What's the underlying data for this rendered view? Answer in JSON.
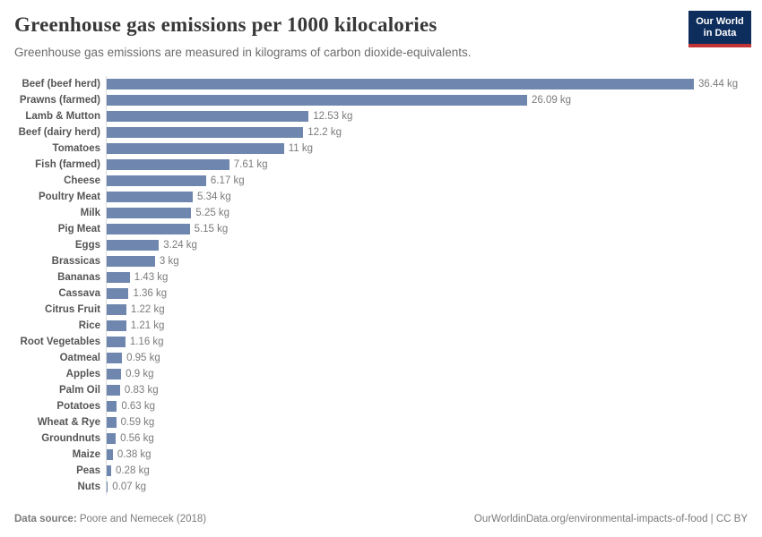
{
  "header": {
    "title": "Greenhouse gas emissions per 1000 kilocalories",
    "subtitle": "Greenhouse gas emissions are measured in kilograms of carbon dioxide-equivalents.",
    "logo": {
      "line1": "Our World",
      "line2": "in Data"
    }
  },
  "footer": {
    "source_label": "Data source:",
    "source_text": " Poore and Nemecek (2018)",
    "link_text": "OurWorldinData.org/environmental-impacts-of-food | CC BY"
  },
  "colors": {
    "bar": "#6f87af",
    "axis_line": "#dcdcdc",
    "logo_bg": "#0d2e5c",
    "logo_accent": "#c23335"
  },
  "chart_data": {
    "type": "bar",
    "orientation": "horizontal",
    "title": "Greenhouse gas emissions per 1000 kilocalories",
    "unit": "kg",
    "xlim": [
      0,
      36.44
    ],
    "grid": false,
    "legend": "none",
    "categories": [
      "Beef (beef herd)",
      "Prawns (farmed)",
      "Lamb & Mutton",
      "Beef (dairy herd)",
      "Tomatoes",
      "Fish (farmed)",
      "Cheese",
      "Poultry Meat",
      "Milk",
      "Pig Meat",
      "Eggs",
      "Brassicas",
      "Bananas",
      "Cassava",
      "Citrus Fruit",
      "Rice",
      "Root Vegetables",
      "Oatmeal",
      "Apples",
      "Palm Oil",
      "Potatoes",
      "Wheat & Rye",
      "Groundnuts",
      "Maize",
      "Peas",
      "Nuts"
    ],
    "values": [
      36.44,
      26.09,
      12.53,
      12.2,
      11,
      7.61,
      6.17,
      5.34,
      5.25,
      5.15,
      3.24,
      3,
      1.43,
      1.36,
      1.22,
      1.21,
      1.16,
      0.95,
      0.9,
      0.83,
      0.63,
      0.59,
      0.56,
      0.38,
      0.28,
      0.07
    ],
    "value_labels": [
      "36.44 kg",
      "26.09 kg",
      "12.53 kg",
      "12.2 kg",
      "11 kg",
      "7.61 kg",
      "6.17 kg",
      "5.34 kg",
      "5.25 kg",
      "5.15 kg",
      "3.24 kg",
      "3 kg",
      "1.43 kg",
      "1.36 kg",
      "1.22 kg",
      "1.21 kg",
      "1.16 kg",
      "0.95 kg",
      "0.9 kg",
      "0.83 kg",
      "0.63 kg",
      "0.59 kg",
      "0.56 kg",
      "0.38 kg",
      "0.28 kg",
      "0.07 kg"
    ]
  }
}
